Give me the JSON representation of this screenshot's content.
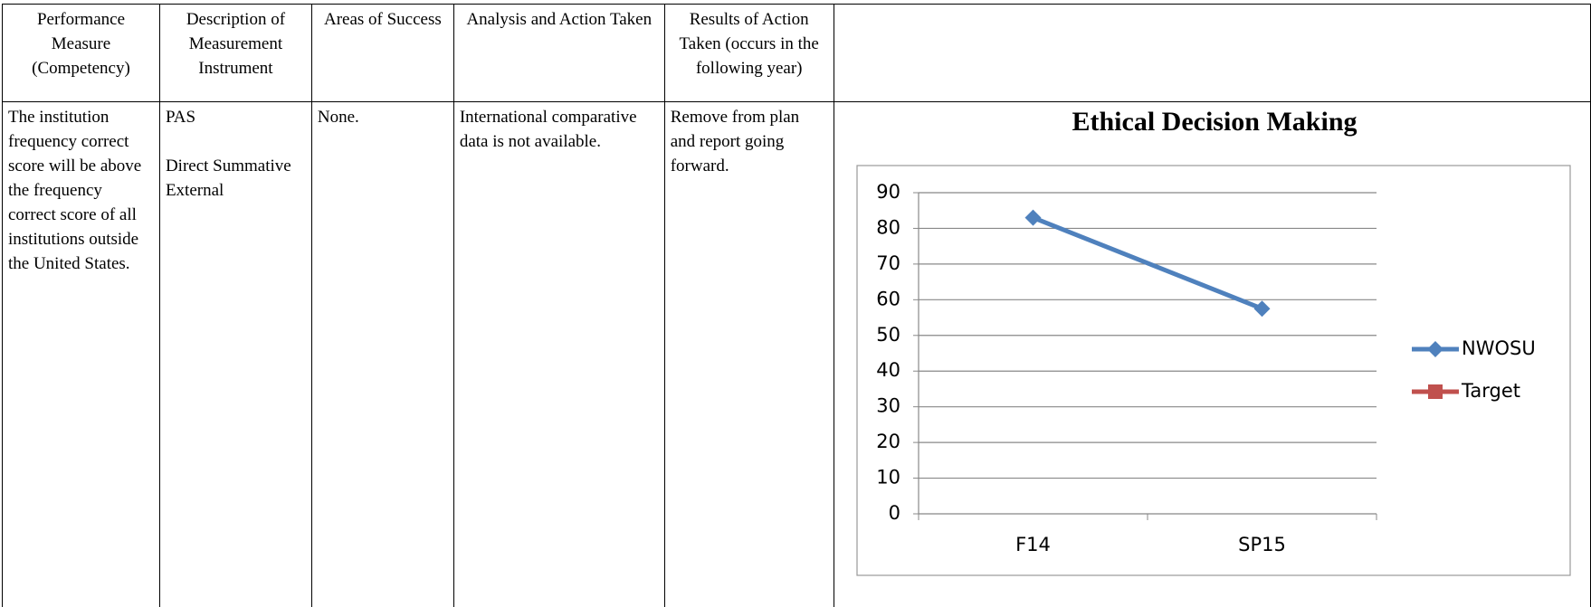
{
  "table": {
    "headers": [
      "Performance Measure (Competency)",
      "Description of Measurement Instrument",
      "Areas of Success",
      "Analysis and Action Taken",
      "Results of Action Taken (occurs in the following year)"
    ],
    "rows": [
      [
        "The institution frequency correct score will be above the frequency correct score of all institutions outside the United States.",
        [
          "PAS",
          "Direct Summative External"
        ],
        "None.",
        "International comparative data is not available.",
        "Remove from plan and report going forward."
      ]
    ]
  },
  "chart": {
    "type": "line",
    "title": "Ethical Decision Making",
    "categories": [
      "F14",
      "SP15"
    ],
    "series": [
      {
        "name": "NWOSU",
        "color": "#4f81bd",
        "values": [
          83,
          57.5
        ]
      },
      {
        "name": "Target",
        "color": "#c0504d",
        "values": [
          null,
          null
        ]
      }
    ],
    "ylim": [
      0,
      90
    ],
    "yticks": [
      0,
      10,
      20,
      30,
      40,
      50,
      60,
      70,
      80,
      90
    ],
    "grid": true,
    "legend": "right"
  }
}
